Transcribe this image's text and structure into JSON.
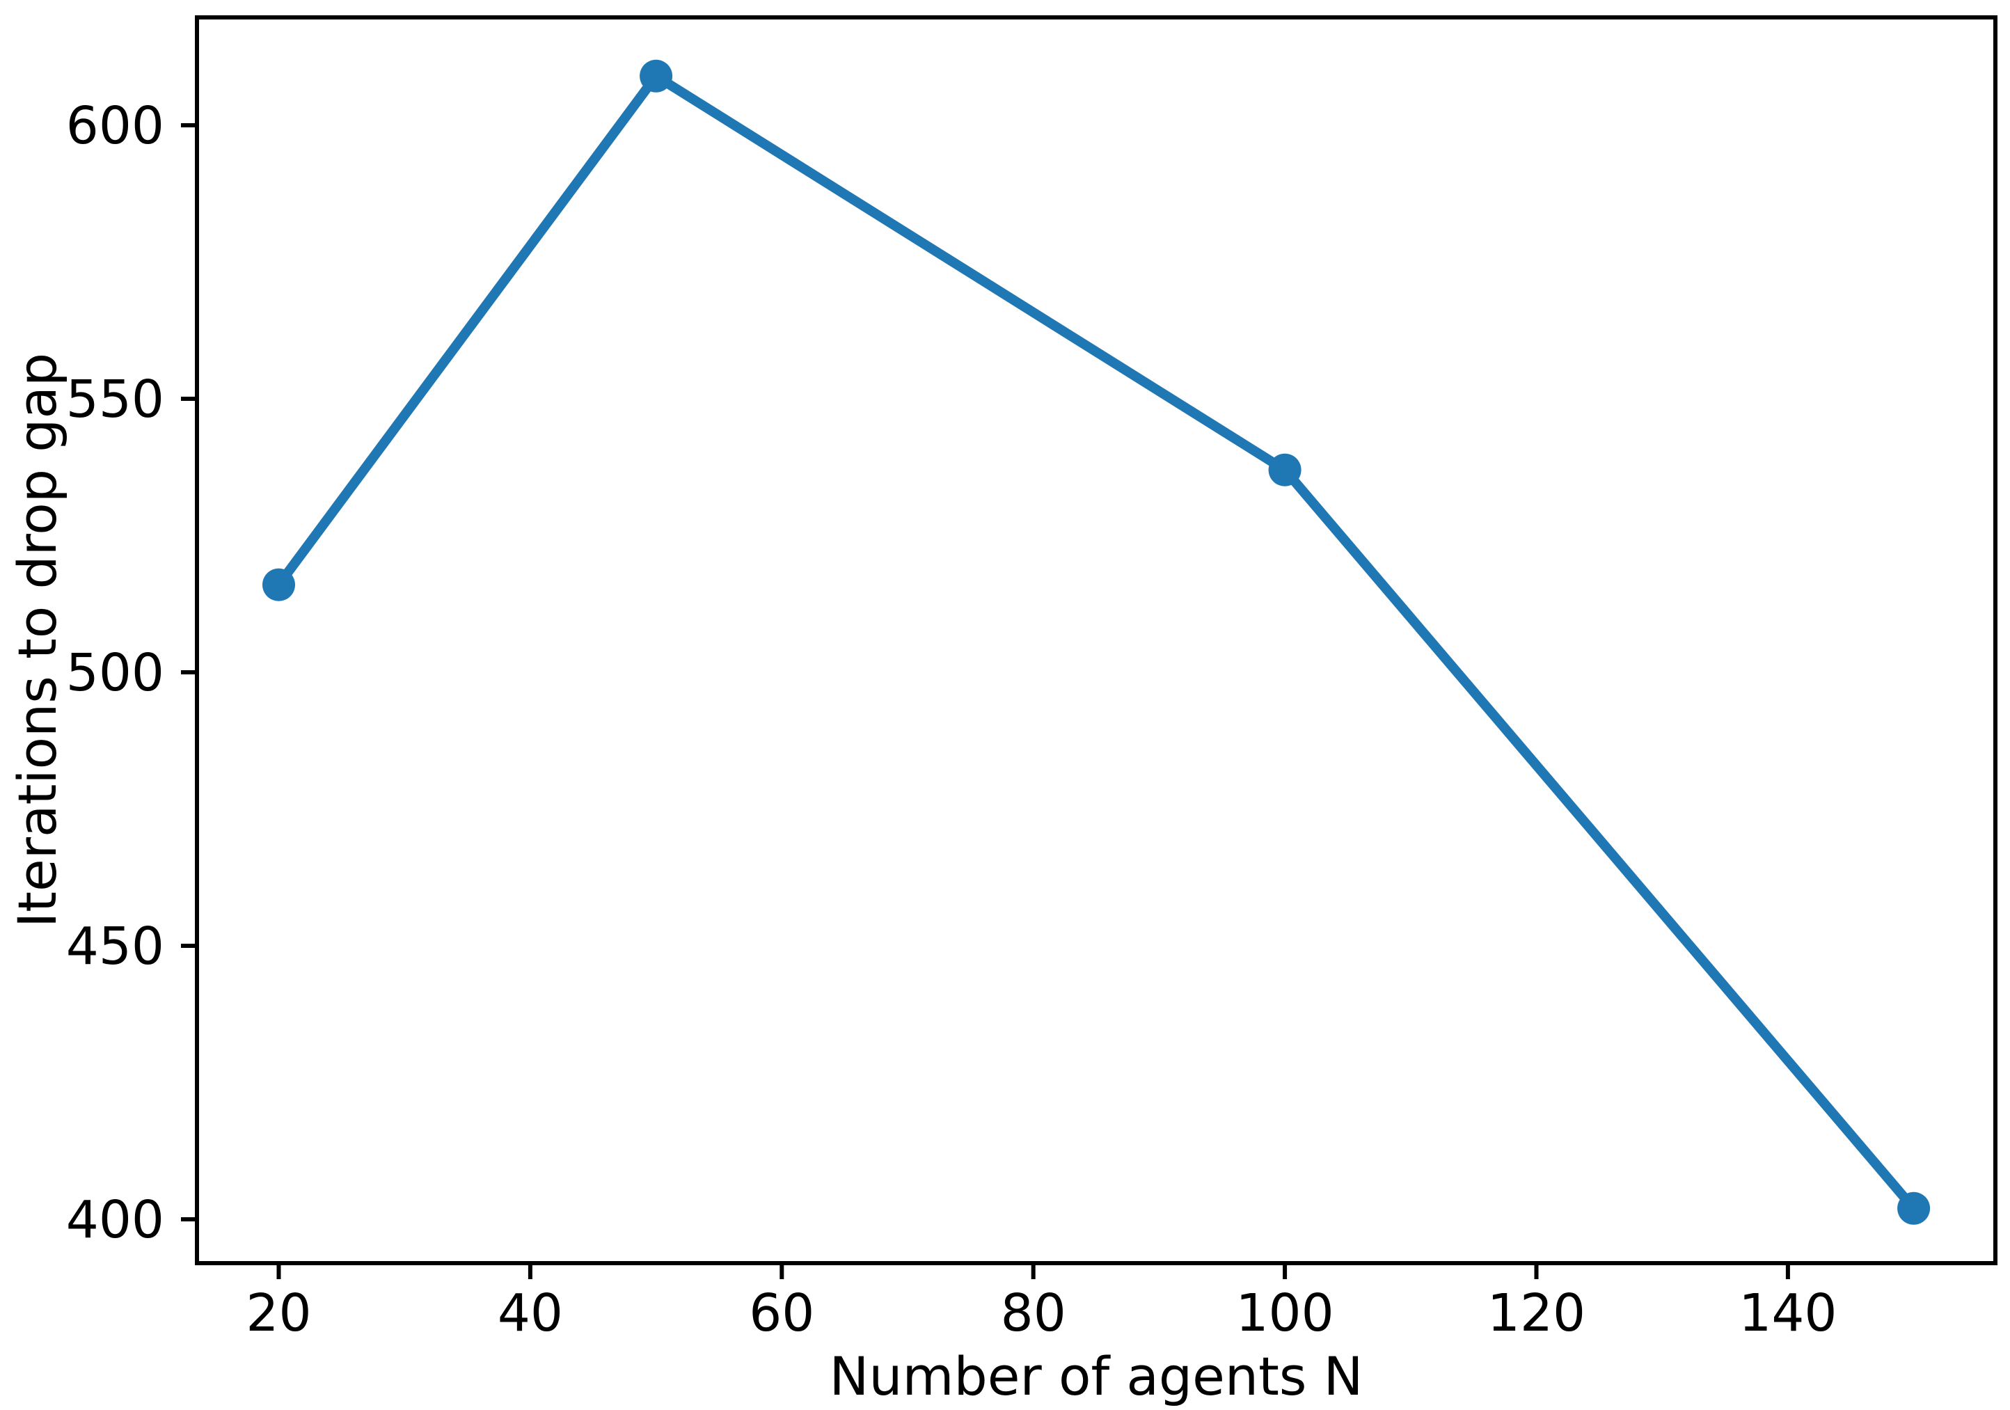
{
  "figure": {
    "background_color": "#ffffff",
    "text_color": "#000000",
    "spine_color": "#000000"
  },
  "chart_data": {
    "type": "line",
    "title": "",
    "xlabel": "Number of agents N",
    "ylabel": "Iterations to drop gap",
    "x": [
      20,
      50,
      100,
      150
    ],
    "values": [
      516,
      609,
      537,
      402
    ],
    "series": [
      {
        "name": "Iterations to drop gap",
        "x": [
          20,
          50,
          100,
          150
        ],
        "values": [
          516,
          609,
          537,
          402
        ]
      }
    ],
    "x_ticks": [
      20,
      40,
      60,
      80,
      100,
      120,
      140
    ],
    "y_ticks": [
      600,
      550,
      500,
      450,
      400
    ],
    "xlim": [
      13.5,
      156.5
    ],
    "ylim": [
      391.65,
      619.35
    ],
    "grid": false,
    "legend_position": "none",
    "line_color": "#1f77b4",
    "marker": "circle",
    "marker_color": "#1f77b4"
  }
}
